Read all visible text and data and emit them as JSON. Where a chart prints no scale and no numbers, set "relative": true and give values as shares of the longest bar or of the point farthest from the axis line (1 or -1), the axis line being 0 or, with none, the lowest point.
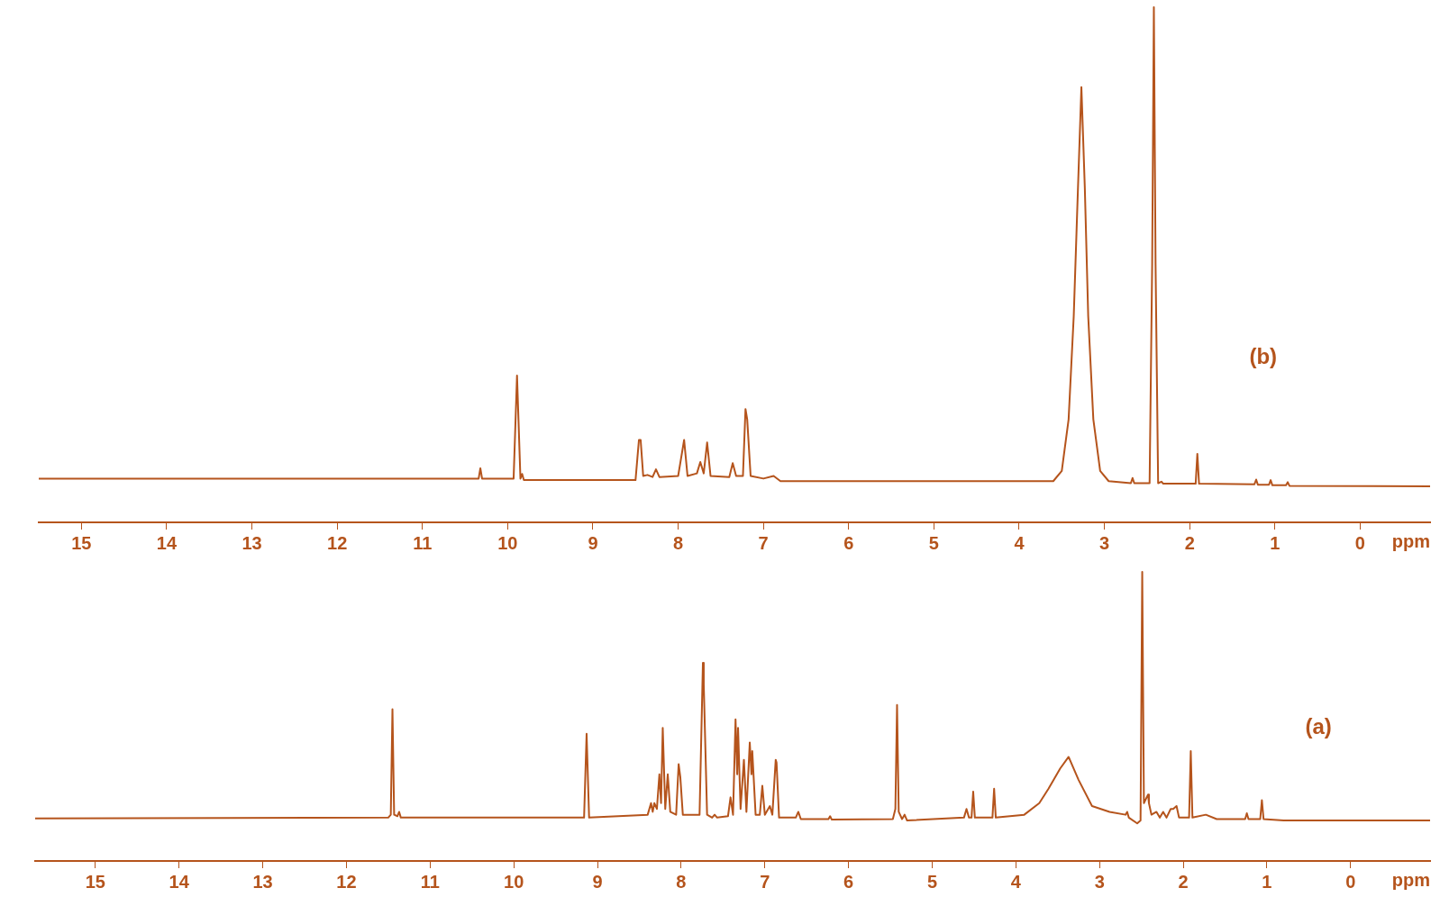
{
  "chart_data": [
    {
      "type": "line",
      "xlabel": "ppm",
      "relative": true,
      "xlim": [
        15.5,
        -0.82
      ],
      "xticks": [
        15,
        14,
        13,
        12,
        11,
        10,
        9,
        8,
        7,
        6,
        5,
        4,
        3,
        2,
        1,
        0
      ],
      "grid": false,
      "legend": false,
      "tick_labels": "x",
      "marker": "none",
      "line_style": "solid",
      "annotations": [
        "(b)"
      ],
      "series": [
        {
          "color": "#b5541c",
          "x": [
            15.5,
            10.34,
            10.32,
            10.3,
            9.93,
            9.89,
            9.85,
            9.83,
            9.81,
            8.5,
            8.46,
            8.44,
            8.41,
            8.36,
            8.3,
            8.26,
            8.22,
            8.0,
            7.93,
            7.89,
            7.78,
            7.74,
            7.7,
            7.66,
            7.62,
            7.4,
            7.36,
            7.32,
            7.24,
            7.21,
            7.19,
            7.15,
            7.0,
            6.88,
            6.8,
            3.6,
            3.5,
            3.42,
            3.36,
            3.31,
            3.27,
            3.23,
            3.19,
            3.13,
            3.05,
            2.95,
            2.69,
            2.67,
            2.65,
            2.47,
            2.44,
            2.42,
            2.4,
            2.37,
            2.33,
            2.31,
            1.93,
            1.91,
            1.89,
            1.24,
            1.22,
            1.2,
            1.07,
            1.05,
            1.03,
            0.87,
            0.85,
            0.83,
            -0.82
          ],
          "values": [
            0.085,
            0.085,
            0.105,
            0.085,
            0.085,
            0.285,
            0.085,
            0.094,
            0.082,
            0.082,
            0.16,
            0.16,
            0.09,
            0.092,
            0.088,
            0.103,
            0.088,
            0.09,
            0.16,
            0.09,
            0.095,
            0.117,
            0.095,
            0.155,
            0.09,
            0.088,
            0.115,
            0.09,
            0.09,
            0.22,
            0.2,
            0.09,
            0.085,
            0.09,
            0.08,
            0.08,
            0.1,
            0.2,
            0.4,
            0.65,
            0.845,
            0.65,
            0.4,
            0.2,
            0.1,
            0.08,
            0.076,
            0.086,
            0.076,
            0.076,
            0.5,
            1,
            0.5,
            0.076,
            0.079,
            0.075,
            0.075,
            0.133,
            0.075,
            0.074,
            0.083,
            0.073,
            0.073,
            0.082,
            0.072,
            0.072,
            0.078,
            0.071,
            0.07
          ]
        }
      ]
    },
    {
      "type": "line",
      "xlabel": "ppm",
      "relative": true,
      "xlim": [
        15.72,
        -0.95
      ],
      "xticks": [
        15,
        14,
        13,
        12,
        11,
        10,
        9,
        8,
        7,
        6,
        5,
        4,
        3,
        2,
        1,
        0
      ],
      "grid": false,
      "legend": false,
      "tick_labels": "x",
      "marker": "none",
      "line_style": "solid",
      "annotations": [
        "(a)"
      ],
      "series": [
        {
          "color": "#b5541c",
          "x": [
            15.72,
            11.5,
            11.47,
            11.45,
            11.43,
            11.39,
            11.37,
            11.35,
            9.16,
            9.13,
            9.1,
            8.4,
            8.36,
            8.34,
            8.32,
            8.29,
            8.26,
            8.24,
            8.22,
            8.19,
            8.16,
            8.13,
            8.06,
            8.03,
            8.01,
            7.98,
            7.78,
            7.74,
            7.73,
            7.69,
            7.63,
            7.6,
            7.57,
            7.44,
            7.41,
            7.38,
            7.35,
            7.33,
            7.32,
            7.29,
            7.25,
            7.22,
            7.18,
            7.16,
            7.15,
            7.11,
            7.06,
            7.03,
            7.0,
            6.94,
            6.91,
            6.87,
            6.86,
            6.83,
            6.63,
            6.6,
            6.57,
            6.24,
            6.22,
            6.2,
            5.47,
            5.44,
            5.42,
            5.4,
            5.36,
            5.33,
            5.3,
            4.62,
            4.59,
            4.56,
            4.53,
            4.51,
            4.49,
            4.28,
            4.26,
            4.24,
            3.9,
            3.72,
            3.61,
            3.47,
            3.37,
            3.25,
            3.09,
            2.88,
            2.69,
            2.67,
            2.65,
            2.55,
            2.51,
            2.49,
            2.47,
            2.42,
            2.41,
            2.38,
            2.32,
            2.28,
            2.24,
            2.2,
            2.15,
            2.12,
            2.08,
            2.05,
            1.93,
            1.91,
            1.89,
            1.73,
            1.6,
            1.26,
            1.24,
            1.22,
            1.08,
            1.06,
            1.04,
            0.8,
            -0.95
          ],
          "values": [
            0.147,
            0.15,
            0.16,
            0.525,
            0.16,
            0.155,
            0.17,
            0.15,
            0.15,
            0.44,
            0.15,
            0.16,
            0.2,
            0.17,
            0.2,
            0.18,
            0.3,
            0.2,
            0.46,
            0.18,
            0.3,
            0.17,
            0.16,
            0.335,
            0.29,
            0.16,
            0.16,
            0.685,
            0.61,
            0.16,
            0.15,
            0.16,
            0.15,
            0.155,
            0.22,
            0.16,
            0.49,
            0.3,
            0.46,
            0.18,
            0.35,
            0.17,
            0.41,
            0.3,
            0.38,
            0.16,
            0.16,
            0.26,
            0.16,
            0.19,
            0.16,
            0.35,
            0.34,
            0.15,
            0.15,
            0.17,
            0.145,
            0.145,
            0.155,
            0.143,
            0.145,
            0.18,
            0.54,
            0.17,
            0.145,
            0.16,
            0.14,
            0.15,
            0.18,
            0.15,
            0.15,
            0.24,
            0.15,
            0.15,
            0.25,
            0.15,
            0.16,
            0.2,
            0.25,
            0.32,
            0.36,
            0.28,
            0.19,
            0.17,
            0.16,
            0.17,
            0.15,
            0.13,
            0.14,
            1,
            0.2,
            0.23,
            0.2,
            0.16,
            0.17,
            0.15,
            0.17,
            0.15,
            0.18,
            0.18,
            0.19,
            0.15,
            0.15,
            0.38,
            0.15,
            0.16,
            0.145,
            0.145,
            0.165,
            0.145,
            0.145,
            0.21,
            0.145,
            0.14,
            0.14
          ]
        }
      ]
    }
  ]
}
